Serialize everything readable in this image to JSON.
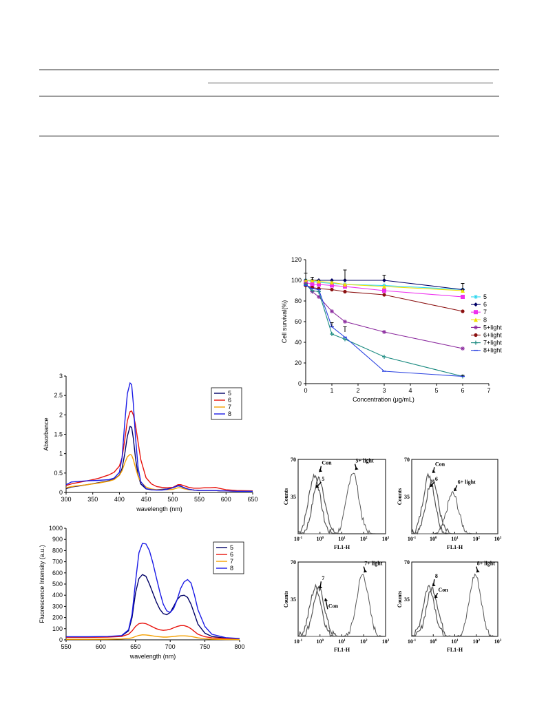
{
  "colors": {
    "s5": "#000066",
    "s6": "#e8120c",
    "s7": "#f5a000",
    "s8": "#1a1ae6",
    "cell5": "#29d6ee",
    "cell6": "#000066",
    "cell7": "#ee30ee",
    "cell8": "#f0e000",
    "cell5l": "#8b2a9e",
    "cell6l": "#8b1010",
    "cell7l": "#1a8a80",
    "cell8l": "#2840e0",
    "flow": "#555555"
  },
  "chart_data": [
    {
      "id": "absorbance",
      "type": "line",
      "xlabel": "wavelength (nm)",
      "ylabel": "Absorbance",
      "xlim": [
        300,
        650
      ],
      "ylim": [
        0,
        3
      ],
      "xticks": [
        "300",
        "350",
        "400",
        "450",
        "500",
        "550",
        "600",
        "650"
      ],
      "yticks": [
        "0",
        "0.5",
        "1",
        "1.5",
        "2",
        "2.5",
        "3"
      ],
      "legend_position": "top-right",
      "x": [
        300,
        310,
        320,
        340,
        360,
        380,
        390,
        400,
        405,
        410,
        415,
        420,
        423,
        426,
        430,
        435,
        440,
        450,
        460,
        470,
        480,
        490,
        500,
        510,
        515,
        520,
        530,
        540,
        550,
        560,
        570,
        580,
        590,
        600,
        620,
        650
      ],
      "series": [
        {
          "name": "5",
          "color_key": "s5",
          "values": [
            0.1,
            0.14,
            0.16,
            0.2,
            0.25,
            0.3,
            0.34,
            0.45,
            0.62,
            1.0,
            1.45,
            1.7,
            1.68,
            1.4,
            0.9,
            0.45,
            0.22,
            0.09,
            0.07,
            0.07,
            0.08,
            0.09,
            0.12,
            0.17,
            0.16,
            0.13,
            0.08,
            0.06,
            0.05,
            0.05,
            0.05,
            0.05,
            0.04,
            0.04,
            0.03,
            0.03
          ]
        },
        {
          "name": "6",
          "color_key": "s6",
          "values": [
            0.18,
            0.22,
            0.25,
            0.3,
            0.36,
            0.45,
            0.52,
            0.68,
            0.9,
            1.35,
            1.85,
            2.08,
            2.1,
            2.0,
            1.75,
            1.3,
            0.85,
            0.38,
            0.22,
            0.15,
            0.13,
            0.12,
            0.13,
            0.2,
            0.2,
            0.18,
            0.13,
            0.11,
            0.11,
            0.12,
            0.12,
            0.13,
            0.1,
            0.07,
            0.05,
            0.04
          ]
        },
        {
          "name": "7",
          "color_key": "s7",
          "values": [
            0.12,
            0.15,
            0.17,
            0.2,
            0.24,
            0.29,
            0.33,
            0.44,
            0.56,
            0.76,
            0.92,
            0.98,
            0.96,
            0.85,
            0.65,
            0.42,
            0.27,
            0.14,
            0.09,
            0.07,
            0.07,
            0.07,
            0.08,
            0.12,
            0.12,
            0.1,
            0.07,
            0.06,
            0.05,
            0.05,
            0.05,
            0.05,
            0.04,
            0.04,
            0.03,
            0.03
          ]
        },
        {
          "name": "8",
          "color_key": "s8",
          "values": [
            0.2,
            0.27,
            0.28,
            0.3,
            0.31,
            0.33,
            0.37,
            0.52,
            0.9,
            1.8,
            2.55,
            2.82,
            2.78,
            2.3,
            1.45,
            0.65,
            0.28,
            0.1,
            0.07,
            0.06,
            0.06,
            0.08,
            0.12,
            0.18,
            0.17,
            0.13,
            0.08,
            0.06,
            0.05,
            0.05,
            0.05,
            0.05,
            0.04,
            0.04,
            0.03,
            0.03
          ]
        }
      ]
    },
    {
      "id": "fluorescence",
      "type": "line",
      "xlabel": "wavelength (nm)",
      "ylabel": "Fluorescence Intensity (a.u.)",
      "xlim": [
        550,
        800
      ],
      "ylim": [
        0,
        1000
      ],
      "xticks": [
        "550",
        "600",
        "650",
        "700",
        "750",
        "800"
      ],
      "yticks": [
        "0",
        "100",
        "200",
        "300",
        "400",
        "500",
        "600",
        "700",
        "800",
        "900",
        "1000"
      ],
      "legend_position": "top-right",
      "x": [
        550,
        580,
        610,
        630,
        640,
        645,
        650,
        655,
        660,
        665,
        670,
        675,
        680,
        685,
        690,
        695,
        700,
        705,
        710,
        715,
        720,
        725,
        730,
        735,
        740,
        750,
        760,
        780,
        800
      ],
      "series": [
        {
          "name": "5",
          "color_key": "s5",
          "values": [
            25,
            25,
            28,
            35,
            80,
            200,
            420,
            550,
            585,
            570,
            500,
            420,
            340,
            275,
            235,
            225,
            245,
            300,
            360,
            395,
            400,
            380,
            320,
            230,
            140,
            60,
            30,
            15,
            10
          ]
        },
        {
          "name": "6",
          "color_key": "s6",
          "values": [
            22,
            22,
            25,
            30,
            50,
            80,
            120,
            145,
            150,
            145,
            130,
            115,
            100,
            90,
            85,
            88,
            95,
            108,
            120,
            128,
            128,
            118,
            100,
            75,
            50,
            28,
            18,
            12,
            10
          ]
        },
        {
          "name": "7",
          "color_key": "s7",
          "values": [
            5,
            5,
            6,
            8,
            12,
            18,
            30,
            40,
            45,
            44,
            40,
            35,
            30,
            27,
            25,
            25,
            27,
            30,
            34,
            36,
            36,
            34,
            30,
            24,
            18,
            10,
            6,
            4,
            3
          ]
        },
        {
          "name": "8",
          "color_key": "s8",
          "values": [
            28,
            28,
            30,
            38,
            90,
            230,
            520,
            780,
            865,
            860,
            800,
            690,
            560,
            430,
            320,
            260,
            245,
            280,
            360,
            460,
            520,
            540,
            510,
            400,
            270,
            120,
            50,
            20,
            12
          ]
        }
      ]
    },
    {
      "id": "cell-survival",
      "type": "line",
      "xlabel": "Concentration (μg/mL)",
      "ylabel": "Cell survival(%)",
      "xlim": [
        0,
        7
      ],
      "ylim": [
        0,
        120
      ],
      "xticks": [
        "0",
        "1",
        "2",
        "3",
        "4",
        "5",
        "6",
        "7"
      ],
      "yticks": [
        "0",
        "20",
        "40",
        "60",
        "80",
        "100",
        "120"
      ],
      "legend_position": "right",
      "x": [
        0,
        0.25,
        0.5,
        1,
        1.5,
        3,
        6
      ],
      "series": [
        {
          "name": "5",
          "color_key": "cell5",
          "marker": "star",
          "values": [
            100,
            99,
            98,
            97,
            96,
            95,
            91
          ]
        },
        {
          "name": "6",
          "color_key": "cell6",
          "marker": "diamond",
          "values": [
            100,
            100,
            100,
            100,
            100,
            100,
            91
          ]
        },
        {
          "name": "7",
          "color_key": "cell7",
          "marker": "square",
          "values": [
            98,
            96,
            96,
            95,
            94,
            90,
            84
          ]
        },
        {
          "name": "8",
          "color_key": "cell8",
          "marker": "triangle",
          "values": [
            100,
            100,
            99,
            98,
            96,
            94,
            90
          ]
        },
        {
          "name": "5+light",
          "color_key": "cell5l",
          "marker": "star",
          "values": [
            97,
            89,
            84,
            70,
            60,
            50,
            34
          ]
        },
        {
          "name": "6+light",
          "color_key": "cell6l",
          "marker": "circle",
          "values": [
            95,
            93,
            92,
            91,
            89,
            86,
            70
          ]
        },
        {
          "name": "7+light",
          "color_key": "cell7l",
          "marker": "plus",
          "values": [
            96,
            90,
            89,
            48,
            43,
            26,
            7
          ]
        },
        {
          "name": "8+light",
          "color_key": "cell8l",
          "marker": "dash",
          "values": [
            95,
            92,
            91,
            55,
            45,
            12,
            7
          ]
        }
      ],
      "errorbars": [
        {
          "x": 0,
          "y": 100,
          "err": 7
        },
        {
          "x": 0.25,
          "y": 100,
          "err": 3
        },
        {
          "x": 1,
          "y": 55,
          "err": 4
        },
        {
          "x": 1.5,
          "y": 100,
          "err": 10
        },
        {
          "x": 1.5,
          "y": 50,
          "err": 5
        },
        {
          "x": 3,
          "y": 100,
          "err": 5
        },
        {
          "x": 6,
          "y": 91,
          "err": 6
        },
        {
          "x": 6,
          "y": 7,
          "err": 1
        }
      ]
    },
    {
      "id": "flow-5",
      "type": "line",
      "xlabel": "FL1-H",
      "ylabel": "Counts",
      "log_x": true,
      "xlim": [
        -1,
        3
      ],
      "ylim": [
        0,
        70
      ],
      "yticks": [
        "35",
        "70"
      ],
      "xtick_labels": [
        "10",
        "10",
        "10",
        "10",
        "10"
      ],
      "xtick_exponents": [
        "-1",
        "0",
        "1",
        "2",
        "3"
      ],
      "annotations": [
        {
          "text": "Con",
          "x": -0.05,
          "y": 58,
          "tx": 0.05,
          "ty": 65
        },
        {
          "text": "5",
          "x": -0.2,
          "y": 43,
          "tx": 0.05,
          "ty": 50
        },
        {
          "text": "5+ light",
          "x": 1.6,
          "y": 60,
          "tx": 1.6,
          "ty": 67
        }
      ],
      "peaks": [
        {
          "center": -0.25,
          "height": 55
        },
        {
          "center": -0.05,
          "height": 52
        },
        {
          "center": 1.5,
          "height": 58
        }
      ]
    },
    {
      "id": "flow-6",
      "type": "line",
      "xlabel": "FL1-H",
      "ylabel": "Counts",
      "log_x": true,
      "xlim": [
        -1,
        3
      ],
      "ylim": [
        0,
        70
      ],
      "yticks": [
        "35",
        "70"
      ],
      "xtick_labels": [
        "10",
        "10",
        "10",
        "10",
        "10"
      ],
      "xtick_exponents": [
        "-1",
        "0",
        "1",
        "2",
        "3"
      ],
      "annotations": [
        {
          "text": "Con",
          "x": -0.05,
          "y": 57,
          "tx": 0.05,
          "ty": 64
        },
        {
          "text": "6",
          "x": -0.15,
          "y": 44,
          "tx": 0.05,
          "ty": 50
        },
        {
          "text": "6+ light",
          "x": 0.95,
          "y": 40,
          "tx": 1.1,
          "ty": 47
        }
      ],
      "peaks": [
        {
          "center": -0.2,
          "height": 55
        },
        {
          "center": -0.05,
          "height": 52
        },
        {
          "center": 0.9,
          "height": 38
        }
      ]
    },
    {
      "id": "flow-7",
      "type": "line",
      "xlabel": "FL1-H",
      "ylabel": "Counts",
      "log_x": true,
      "xlim": [
        -1,
        3
      ],
      "ylim": [
        0,
        70
      ],
      "yticks": [
        "35",
        "70"
      ],
      "xtick_labels": [
        "10",
        "10",
        "10",
        "10",
        "10"
      ],
      "xtick_exponents": [
        "-1",
        "0",
        "1",
        "2",
        "3"
      ],
      "annotations": [
        {
          "text": "7",
          "x": -0.05,
          "y": 45,
          "tx": 0.05,
          "ty": 53
        },
        {
          "text": "Con",
          "x": 0.2,
          "y": 33,
          "tx": 0.35,
          "ty": 27
        },
        {
          "text": "7+ light",
          "x": 2.0,
          "y": 60,
          "tx": 2.0,
          "ty": 67
        }
      ],
      "peaks": [
        {
          "center": -0.2,
          "height": 46
        },
        {
          "center": -0.05,
          "height": 44
        },
        {
          "center": 1.95,
          "height": 58
        }
      ]
    },
    {
      "id": "flow-8",
      "type": "line",
      "xlabel": "FL1-H",
      "ylabel": "Counts",
      "log_x": true,
      "xlim": [
        -1,
        3
      ],
      "ylim": [
        0,
        70
      ],
      "yticks": [
        "35",
        "70"
      ],
      "xtick_labels": [
        "10",
        "10",
        "10",
        "10",
        "10"
      ],
      "xtick_exponents": [
        "-1",
        "0",
        "1",
        "2",
        "3"
      ],
      "annotations": [
        {
          "text": "8",
          "x": -0.05,
          "y": 47,
          "tx": 0.05,
          "ty": 55
        },
        {
          "text": "Con",
          "x": 0.05,
          "y": 36,
          "tx": 0.2,
          "ty": 42
        },
        {
          "text": "8+ light",
          "x": 2.0,
          "y": 60,
          "tx": 2.0,
          "ty": 67
        }
      ],
      "peaks": [
        {
          "center": -0.2,
          "height": 47
        },
        {
          "center": -0.05,
          "height": 45
        },
        {
          "center": 1.95,
          "height": 58
        }
      ]
    }
  ]
}
